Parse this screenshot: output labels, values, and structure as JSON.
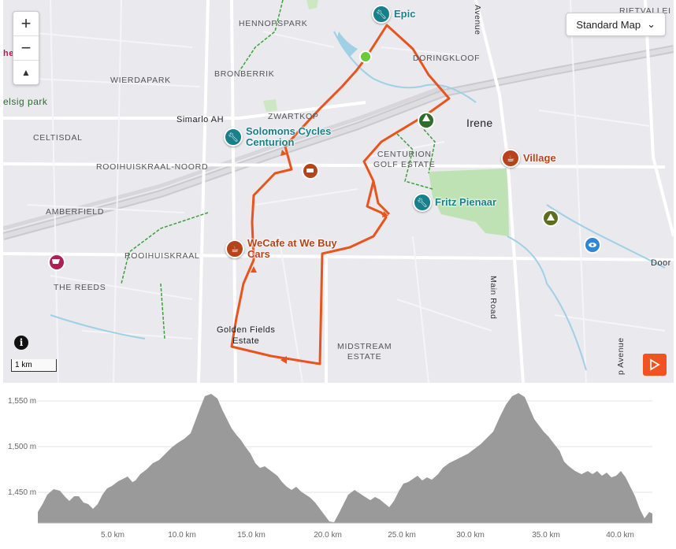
{
  "map": {
    "style_selector": "Standard Map",
    "scale_label": "1 km",
    "route_color": "#e8541b",
    "labels": {
      "hennopspark": "HENNOPSPARK",
      "bronberrik": "BRONBERRIK",
      "wierdapark": "WIERDAPARK",
      "elsig": "elsig park",
      "celtisdal": "CELTISDAL",
      "simarlo": "Simarlo AH",
      "zwartkop": "ZWARTKOP",
      "rooihuiskraal_noord": "ROOIHUISKRAAL-NOORD",
      "amberfield": "AMBERFIELD",
      "rooihuiskraal": "ROOIHUISKRAAL",
      "the_reeds": "THE REEDS",
      "golden_fields": "Golden Fields\nEstate",
      "midstream": "MIDSTREAM\nESTATE",
      "doringkloof": "DORINGKLOOF",
      "irene": "Irene",
      "centurion_golf": "CENTURION\nGOLF ESTATE",
      "main_road": "Main Road",
      "avenue_top": "Avenue",
      "avenue_bottom": "p Avenue",
      "rietvallei": "RIETVALLEI",
      "doorn": "Door",
      "edge_ho": "he"
    },
    "pois": {
      "epic": "Epic",
      "solomons": "Solomons Cycles\nCenturion",
      "fritz": "Fritz Pienaar",
      "village": "Village",
      "wecafe": "WeCafe at We Buy\nCars"
    }
  },
  "elevation": {
    "y_ticks": [
      "1,550 m",
      "1,500 m",
      "1,450 m"
    ],
    "x_ticks": [
      "5.0 km",
      "10.0 km",
      "15.0 km",
      "20.0 km",
      "25.0 km",
      "30.0 km",
      "35.0 km",
      "40.0 km"
    ]
  }
}
